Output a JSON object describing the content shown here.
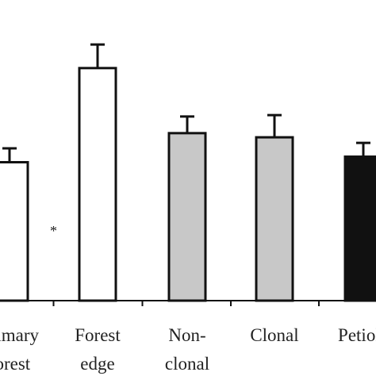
{
  "chart_data": {
    "type": "bar",
    "categories": [
      {
        "lines": [
          "Primary",
          "forest"
        ]
      },
      {
        "lines": [
          "Forest",
          "edge"
        ]
      },
      {
        "lines": [
          "Non-",
          "clonal"
        ]
      },
      {
        "lines": [
          "Clonal"
        ]
      },
      {
        "lines": [
          "Petiole"
        ]
      }
    ],
    "values": [
      100,
      168,
      121,
      118,
      104
    ],
    "errors": [
      10,
      17,
      12,
      16,
      10
    ],
    "fills": [
      "#ffffff",
      "#ffffff",
      "#c8c8c8",
      "#c8c8c8",
      "#111111"
    ],
    "ylim": [
      0,
      200
    ],
    "annotations": [
      {
        "text": "*",
        "category_index": 1,
        "y": 47
      }
    ],
    "xlabel": "",
    "ylabel": "",
    "title": ""
  }
}
